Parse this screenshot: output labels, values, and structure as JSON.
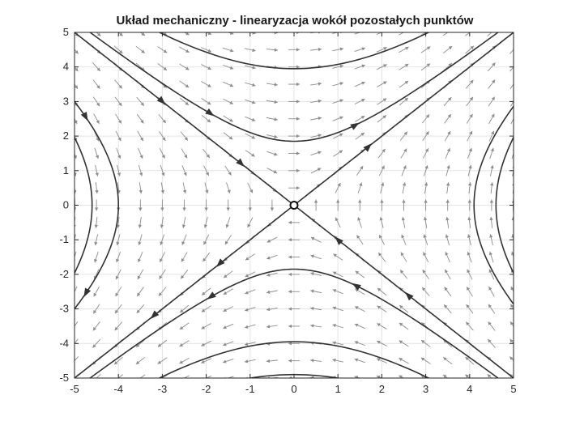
{
  "chart_data": {
    "type": "phase-portrait",
    "title": "Układ mechaniczny - linearyzacja wokół pozostałych punktów",
    "xlabel": "",
    "ylabel": "",
    "xlim": [
      -5,
      5
    ],
    "ylim": [
      -5,
      5
    ],
    "xticks": [
      -5,
      -4,
      -3,
      -2,
      -1,
      0,
      1,
      2,
      3,
      4,
      5
    ],
    "yticks": [
      -5,
      -4,
      -3,
      -2,
      -1,
      0,
      1,
      2,
      3,
      4,
      5
    ],
    "grid": true,
    "equilibrium": {
      "x": 0,
      "y": 0,
      "kind": "saddle"
    },
    "system": {
      "dx": "y",
      "dy": "x"
    },
    "separatrices": [
      {
        "name": "stable",
        "direction": [
          1,
          -1
        ]
      },
      {
        "name": "unstable",
        "direction": [
          1,
          1
        ]
      }
    ],
    "trajectories": [
      {
        "family": "horizontal",
        "sign": 1,
        "c": 1.85
      },
      {
        "family": "horizontal",
        "sign": 1,
        "c": 3.95
      },
      {
        "family": "horizontal",
        "sign": -1,
        "c": 1.85
      },
      {
        "family": "horizontal",
        "sign": -1,
        "c": 3.95
      },
      {
        "family": "horizontal",
        "sign": -1,
        "c": 4.9
      },
      {
        "family": "vertical",
        "sign": 1,
        "c": 4.1
      },
      {
        "family": "vertical",
        "sign": 1,
        "c": 4.6
      },
      {
        "family": "vertical",
        "sign": 1,
        "c": 5.0
      },
      {
        "family": "vertical",
        "sign": -1,
        "c": 4.0
      },
      {
        "family": "vertical",
        "sign": -1,
        "c": 4.6
      },
      {
        "family": "vertical",
        "sign": -1,
        "c": 5.0
      }
    ],
    "vector_field": {
      "grid_spacing": 0.5,
      "color": "#8c8c8c"
    },
    "trajectory_color": "#333333"
  }
}
